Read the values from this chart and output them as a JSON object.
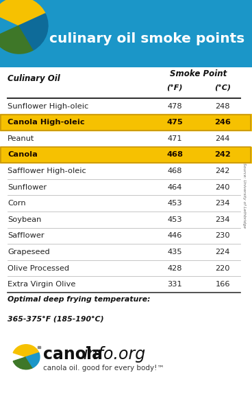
{
  "title": "culinary oil smoke points",
  "header_col1": "Culinary Oil",
  "header_col2": "Smoke Point",
  "header_sub1": "(°F)",
  "header_sub2": "(°C)",
  "rows": [
    {
      "name": "Sunflower High-oleic",
      "f": "478",
      "c": "248",
      "highlight": false
    },
    {
      "name": "Canola High-oleic",
      "f": "475",
      "c": "246",
      "highlight": true
    },
    {
      "name": "Peanut",
      "f": "471",
      "c": "244",
      "highlight": false
    },
    {
      "name": "Canola",
      "f": "468",
      "c": "242",
      "highlight": true
    },
    {
      "name": "Safflower High-oleic",
      "f": "468",
      "c": "242",
      "highlight": false
    },
    {
      "name": "Sunflower",
      "f": "464",
      "c": "240",
      "highlight": false
    },
    {
      "name": "Corn",
      "f": "453",
      "c": "234",
      "highlight": false
    },
    {
      "name": "Soybean",
      "f": "453",
      "c": "234",
      "highlight": false
    },
    {
      "name": "Safflower",
      "f": "446",
      "c": "230",
      "highlight": false
    },
    {
      "name": "Grapeseed",
      "f": "435",
      "c": "224",
      "highlight": false
    },
    {
      "name": "Olive Processed",
      "f": "428",
      "c": "220",
      "highlight": false
    },
    {
      "name": "Extra Virgin Olive",
      "f": "331",
      "c": "166",
      "highlight": false
    }
  ],
  "footnote_line1": "Optimal deep frying temperature:",
  "footnote_line2": "365-375°F (185-190°C)",
  "source_text": "Source: University of Lethbridge",
  "header_bg": "#1B96C8",
  "highlight_color": "#F6C101",
  "highlight_border": "#C8960C",
  "text_normal": "#222222",
  "text_highlight": "#1A0A00",
  "line_color_heavy": "#333333",
  "line_color_light": "#BBBBBB",
  "canola_blue": "#1B96C8",
  "canola_green": "#3E7728",
  "canola_yellow": "#F6C101",
  "logo_subtext": "canola oil. good for every body!™"
}
